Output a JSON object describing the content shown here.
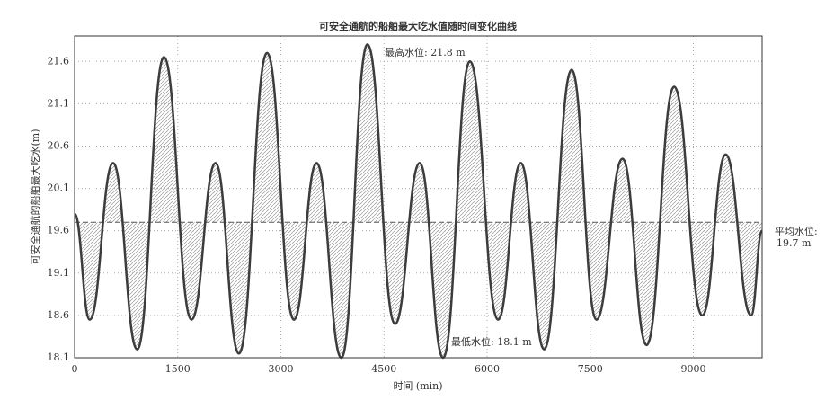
{
  "chart_data": {
    "type": "line",
    "title": "可安全通航的船舶最大吃水值随时间变化曲线",
    "xlabel": "时间 (min)",
    "ylabel": "可安全通航的船舶最大吃水(m)",
    "x": [
      0,
      220,
      560,
      910,
      1300,
      1700,
      2050,
      2390,
      2800,
      3190,
      3520,
      3880,
      4260,
      4660,
      5020,
      5360,
      5750,
      6160,
      6490,
      6830,
      7230,
      7590,
      7970,
      8320,
      8720,
      9130,
      9470,
      9840,
      10000
    ],
    "values": [
      19.8,
      18.55,
      20.4,
      18.2,
      21.65,
      18.55,
      20.4,
      18.15,
      21.7,
      18.55,
      20.4,
      18.1,
      21.8,
      18.5,
      20.4,
      18.1,
      21.6,
      18.55,
      20.4,
      18.2,
      21.5,
      18.55,
      20.45,
      18.25,
      21.3,
      18.6,
      20.5,
      18.6,
      19.6
    ],
    "color": "#3c3c3c",
    "mean_level": 19.7,
    "annotations": [
      "最高水位: 21.8 m",
      "最低水位: 18.1 m",
      "平均水位:",
      "19.7 m"
    ],
    "xlim": [
      0,
      10000
    ],
    "ylim": [
      18.1,
      21.9
    ],
    "xticks": [
      0,
      1500,
      3000,
      4500,
      6000,
      7500,
      9000
    ],
    "yticks": [
      18.1,
      18.6,
      19.1,
      19.6,
      20.1,
      20.6,
      21.1,
      21.6
    ],
    "grid": true
  }
}
